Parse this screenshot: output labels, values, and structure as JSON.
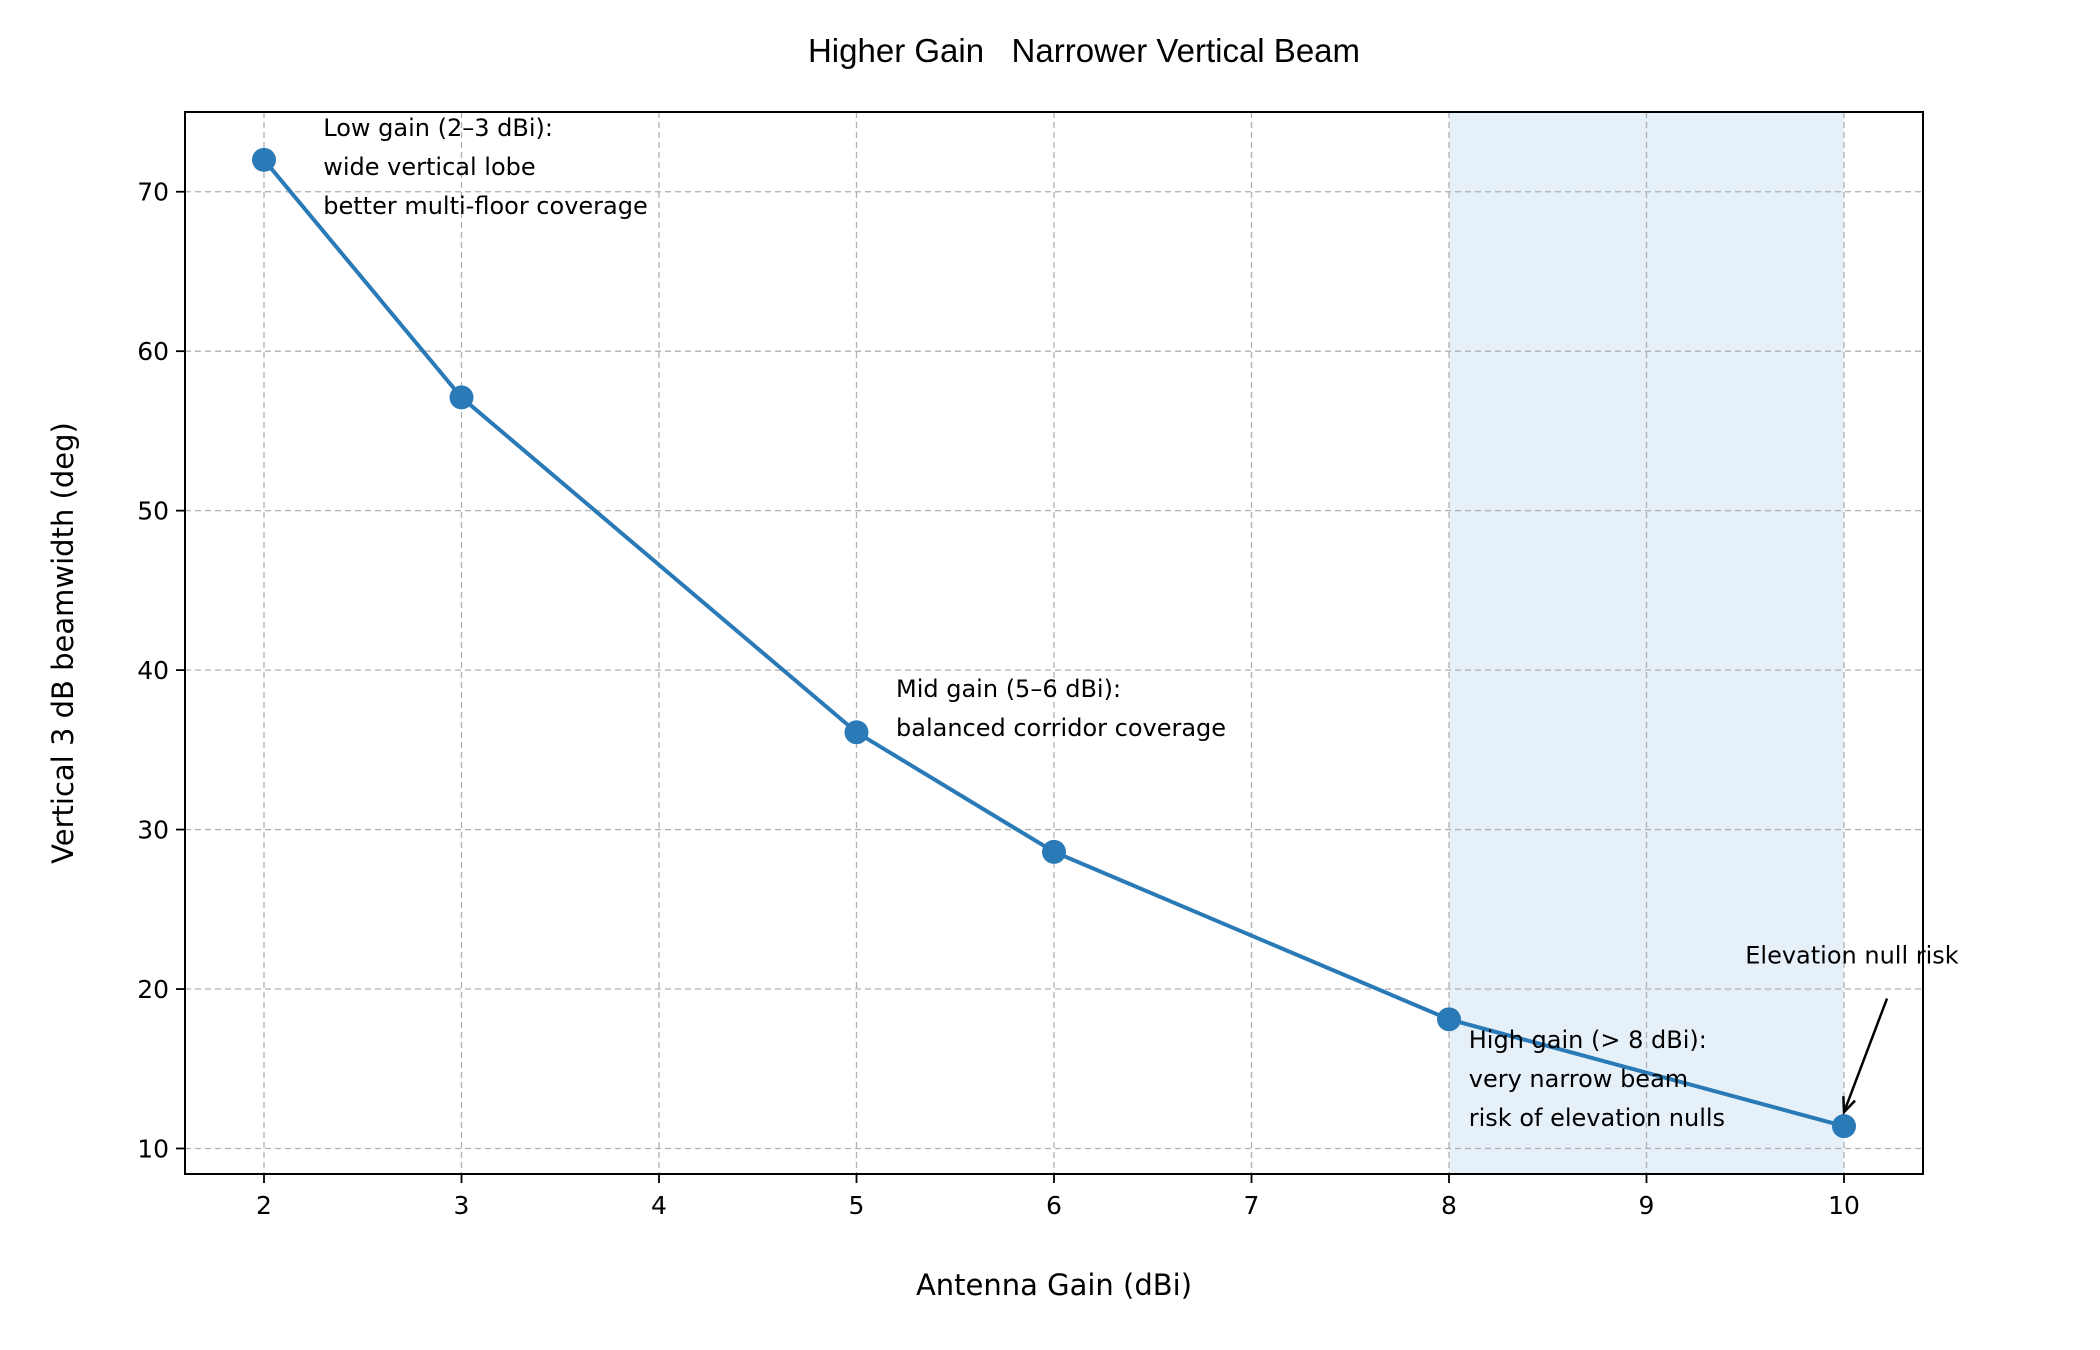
{
  "chart_data": {
    "type": "line",
    "title": "Higher Gain   Narrower Vertical Beam",
    "xlabel": "Antenna Gain (dBi)",
    "ylabel": "Vertical 3 dB beamwidth (deg)",
    "x": [
      2,
      3,
      5,
      6,
      8,
      10
    ],
    "y": [
      72,
      57.1,
      36.1,
      28.6,
      18.1,
      11.4
    ],
    "xlim": [
      1.6,
      10.4
    ],
    "ylim": [
      8.4,
      75
    ],
    "xticks": [
      2,
      3,
      4,
      5,
      6,
      7,
      8,
      9,
      10
    ],
    "yticks": [
      10,
      20,
      30,
      40,
      50,
      60,
      70
    ],
    "grid": true,
    "grid_style": "dashed",
    "line_color": "#2a7ab8",
    "marker": "circle",
    "shaded_region": {
      "x_from": 8,
      "x_to": 10,
      "color": "#e6f0f9"
    },
    "annotations": [
      {
        "id": "low",
        "lines": [
          "Low gain (2–3 dBi):",
          "wide vertical lobe",
          "better multi-floor coverage"
        ],
        "x": 2.3,
        "y": 73.5
      },
      {
        "id": "mid",
        "lines": [
          "Mid gain (5–6 dBi):",
          "balanced corridor coverage"
        ],
        "x": 5.2,
        "y": 38.3
      },
      {
        "id": "high",
        "lines": [
          "High gain (> 8 dBi):",
          "very narrow beam",
          "risk of elevation nulls"
        ],
        "x": 8.1,
        "y": 16.3
      },
      {
        "id": "null",
        "lines": [
          "Elevation null risk"
        ],
        "x": 9.5,
        "y": 21.6,
        "arrow_to": [
          10,
          11.4
        ]
      }
    ]
  }
}
